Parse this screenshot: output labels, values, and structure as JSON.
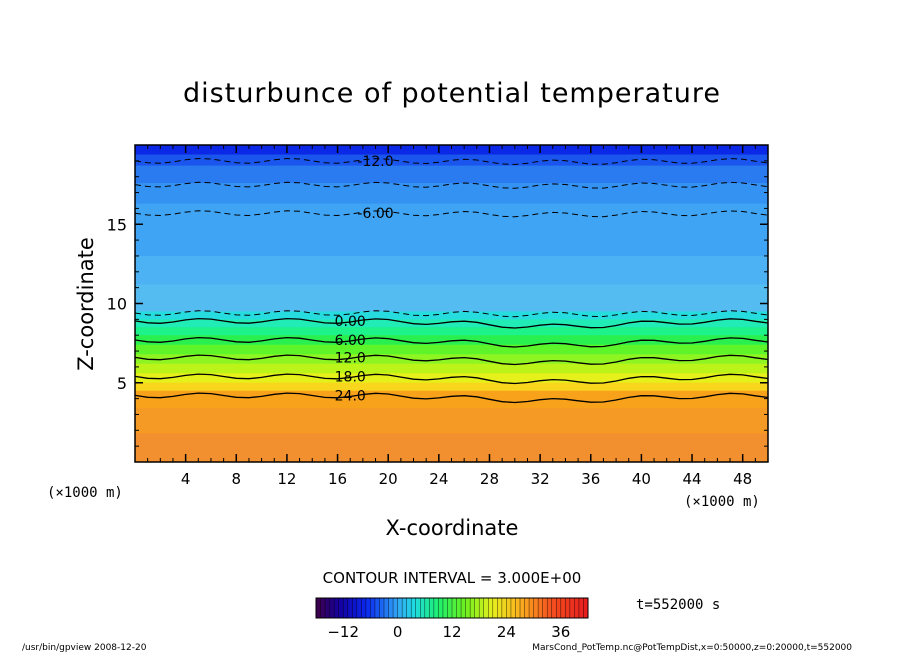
{
  "chart_data": {
    "type": "contour",
    "title": "disturbunce of potential temperature",
    "xlabel": "X-coordinate",
    "ylabel": "Z-coordinate",
    "x_unit_left": "(×1000 m)",
    "x_unit_right": "(×1000 m)",
    "xlim": [
      0,
      50
    ],
    "ylim": [
      0,
      20
    ],
    "x_ticks": [
      4,
      8,
      12,
      16,
      20,
      24,
      28,
      32,
      36,
      40,
      44,
      48
    ],
    "y_ticks": [
      5,
      10,
      15
    ],
    "contour_labels": [
      {
        "text": "-12.0",
        "x": 19,
        "z": 19.0
      },
      {
        "text": "-6.00",
        "x": 19,
        "z": 15.7
      },
      {
        "text": "0.00",
        "x": 17,
        "z": 8.9
      },
      {
        "text": "6.00",
        "x": 17,
        "z": 7.7
      },
      {
        "text": "12.0",
        "x": 17,
        "z": 6.6
      },
      {
        "text": "18.0",
        "x": 17,
        "z": 5.4
      },
      {
        "text": "24.0",
        "x": 17,
        "z": 4.2
      }
    ],
    "contour_interval_text": "CONTOUR INTERVAL = 3.000E+00",
    "time_text": "t=552000 s",
    "colorbar": {
      "min": -18,
      "max": 42,
      "tick_values": [
        -12,
        0,
        12,
        24,
        36
      ],
      "tick_labels": [
        "−12",
        "0",
        "12",
        "24",
        "36"
      ]
    },
    "field_layers": [
      {
        "z_top": 20.0,
        "value": -15,
        "color": "#0a28e6"
      },
      {
        "z_top": 19.4,
        "value": -13,
        "color": "#1a55ee"
      },
      {
        "z_top": 18.7,
        "value": -11,
        "color": "#2a7bf0"
      },
      {
        "z_top": 17.6,
        "value": -9,
        "color": "#3492f2"
      },
      {
        "z_top": 16.3,
        "value": -7,
        "color": "#3fa4f4"
      },
      {
        "z_top": 13.0,
        "value": -5,
        "color": "#4cb2f4"
      },
      {
        "z_top": 11.2,
        "value": -4,
        "color": "#55bcf2"
      },
      {
        "z_top": 9.5,
        "value": -1,
        "color": "#27dcdf"
      },
      {
        "z_top": 9.0,
        "value": 2,
        "color": "#22ecb6"
      },
      {
        "z_top": 8.5,
        "value": 5,
        "color": "#1ef28a"
      },
      {
        "z_top": 8.0,
        "value": 8,
        "color": "#2af04f"
      },
      {
        "z_top": 7.4,
        "value": 11,
        "color": "#5ef42a"
      },
      {
        "z_top": 6.8,
        "value": 14,
        "color": "#8ef522"
      },
      {
        "z_top": 6.2,
        "value": 17,
        "color": "#bcf41a"
      },
      {
        "z_top": 5.6,
        "value": 20,
        "color": "#e6f01a"
      },
      {
        "z_top": 5.0,
        "value": 23,
        "color": "#f8d61e"
      },
      {
        "z_top": 4.5,
        "value": 26,
        "color": "#f8a21c"
      },
      {
        "z_top": 3.4,
        "value": 28,
        "color": "#f59a24"
      },
      {
        "z_top": 1.8,
        "value": 29,
        "color": "#f29030"
      }
    ]
  },
  "footer": {
    "left": "/usr/bin/gpview   2008-12-20",
    "right": "MarsCond_PotTemp.nc@PotTempDist,x=0:50000,z=0:20000,t=552000"
  },
  "colors": {
    "axis": "#000000",
    "background": "#ffffff"
  }
}
